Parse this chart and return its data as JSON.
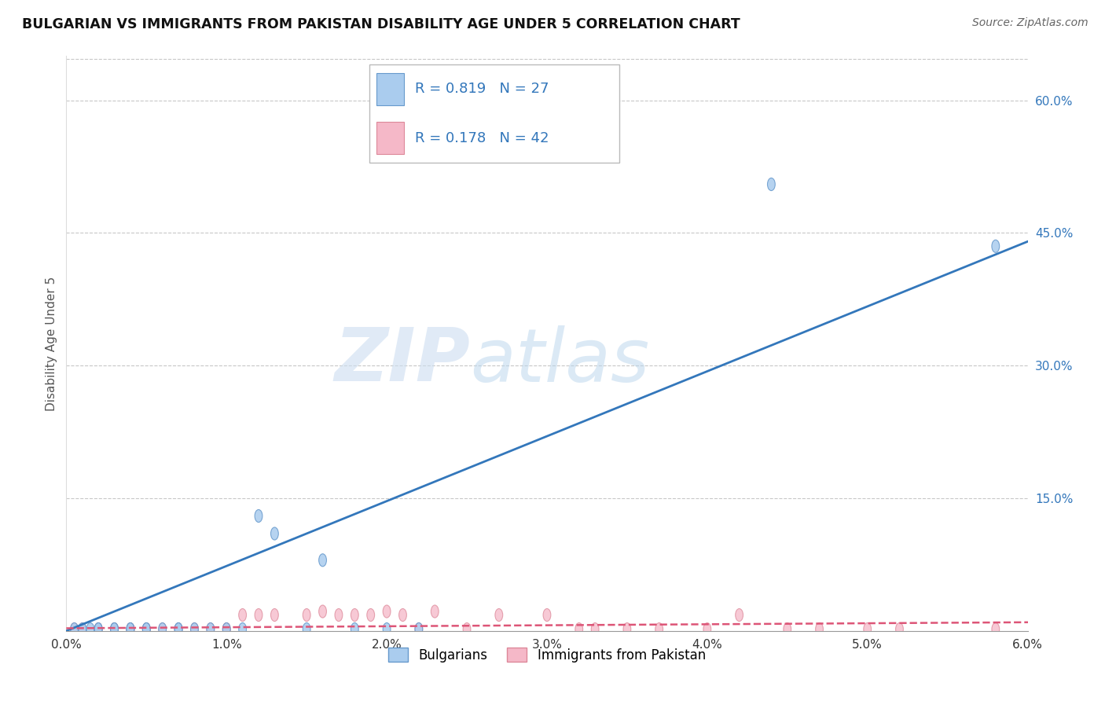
{
  "title": "BULGARIAN VS IMMIGRANTS FROM PAKISTAN DISABILITY AGE UNDER 5 CORRELATION CHART",
  "source": "Source: ZipAtlas.com",
  "ylabel": "Disability Age Under 5",
  "xlabel": "",
  "xlim": [
    0.0,
    0.06
  ],
  "ylim": [
    0.0,
    0.65
  ],
  "xticks": [
    0.0,
    0.01,
    0.02,
    0.03,
    0.04,
    0.05,
    0.06
  ],
  "xticklabels": [
    "0.0%",
    "1.0%",
    "2.0%",
    "3.0%",
    "4.0%",
    "5.0%",
    "6.0%"
  ],
  "yticks_right": [
    0.15,
    0.3,
    0.45,
    0.6
  ],
  "ytick_right_labels": [
    "15.0%",
    "30.0%",
    "45.0%",
    "60.0%"
  ],
  "grid_color": "#c8c8c8",
  "bg_color": "#ffffff",
  "blue_color": "#aaccee",
  "blue_edge": "#6699cc",
  "pink_color": "#f5b8c8",
  "pink_edge": "#dd8899",
  "blue_line_color": "#3377bb",
  "pink_line_color": "#dd5577",
  "R_blue": 0.819,
  "N_blue": 27,
  "R_pink": 0.178,
  "N_pink": 42,
  "watermark_zip": "ZIP",
  "watermark_atlas": "atlas",
  "legend_labels": [
    "Bulgarians",
    "Immigrants from Pakistan"
  ],
  "blue_scatter_x": [
    0.0005,
    0.001,
    0.0015,
    0.002,
    0.002,
    0.003,
    0.003,
    0.004,
    0.004,
    0.005,
    0.005,
    0.006,
    0.007,
    0.007,
    0.008,
    0.009,
    0.01,
    0.011,
    0.012,
    0.013,
    0.015,
    0.016,
    0.018,
    0.02,
    0.022,
    0.044,
    0.058
  ],
  "blue_scatter_y": [
    0.002,
    0.002,
    0.002,
    0.002,
    0.002,
    0.002,
    0.002,
    0.002,
    0.002,
    0.002,
    0.002,
    0.002,
    0.002,
    0.002,
    0.002,
    0.002,
    0.002,
    0.002,
    0.13,
    0.11,
    0.002,
    0.08,
    0.002,
    0.002,
    0.002,
    0.505,
    0.435
  ],
  "pink_scatter_x": [
    0.0005,
    0.001,
    0.002,
    0.002,
    0.003,
    0.003,
    0.004,
    0.004,
    0.005,
    0.005,
    0.006,
    0.007,
    0.008,
    0.009,
    0.01,
    0.01,
    0.011,
    0.012,
    0.013,
    0.015,
    0.016,
    0.017,
    0.018,
    0.019,
    0.02,
    0.021,
    0.022,
    0.023,
    0.025,
    0.027,
    0.03,
    0.032,
    0.033,
    0.035,
    0.037,
    0.04,
    0.042,
    0.045,
    0.047,
    0.05,
    0.052,
    0.058
  ],
  "pink_scatter_y": [
    0.002,
    0.002,
    0.002,
    0.002,
    0.002,
    0.002,
    0.002,
    0.002,
    0.002,
    0.002,
    0.002,
    0.002,
    0.002,
    0.002,
    0.002,
    0.002,
    0.018,
    0.018,
    0.018,
    0.018,
    0.022,
    0.018,
    0.018,
    0.018,
    0.022,
    0.018,
    0.002,
    0.022,
    0.002,
    0.018,
    0.018,
    0.002,
    0.002,
    0.002,
    0.002,
    0.002,
    0.018,
    0.002,
    0.002,
    0.002,
    0.002,
    0.002
  ]
}
